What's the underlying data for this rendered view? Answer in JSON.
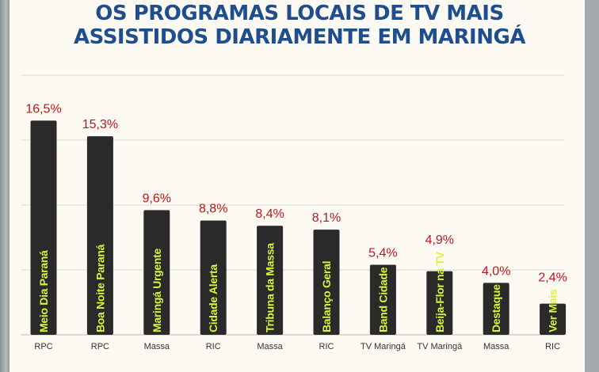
{
  "chart_data": {
    "type": "bar",
    "title": "OS PROGRAMAS LOCAIS DE TV MAIS ASSISTIDOS DIARIAMENTE EM MARINGÁ",
    "title_lines": [
      "OS PROGRAMAS LOCAIS DE TV MAIS",
      "ASSISTIDOS DIARIAMENTE EM MARINGÁ"
    ],
    "categories": [
      "RPC",
      "RPC",
      "Massa",
      "RIC",
      "Massa",
      "RIC",
      "TV Maringá",
      "TV Maringá",
      "Massa",
      "RIC"
    ],
    "programs": [
      "Meio Dia Paraná",
      "Boa Noite Paraná",
      "Maringá Urgente",
      "Cidade Alerta",
      "Tribuna da Massa",
      "Balanço Geral",
      "Band Cidade",
      "Beija-Flor na TV",
      "Destaque",
      "Ver Mais"
    ],
    "values": [
      16.5,
      15.3,
      9.6,
      8.8,
      8.4,
      8.1,
      5.4,
      4.9,
      4.0,
      2.4
    ],
    "value_labels": [
      "16,5%",
      "15,3%",
      "9,6%",
      "8,8%",
      "8,4%",
      "8,1%",
      "5,4%",
      "4,9%",
      "4,0%",
      "2,4%"
    ],
    "xlabel": "",
    "ylabel": "",
    "ylim": [
      0,
      20
    ],
    "gridlines": [
      5,
      10,
      15,
      20
    ],
    "grid": true,
    "colors": {
      "bar": "#2a2a2a",
      "value_label": "#c0141c",
      "program_label": "#d6f53a",
      "title": "#1f4e8f",
      "category_label": "#333333"
    }
  }
}
